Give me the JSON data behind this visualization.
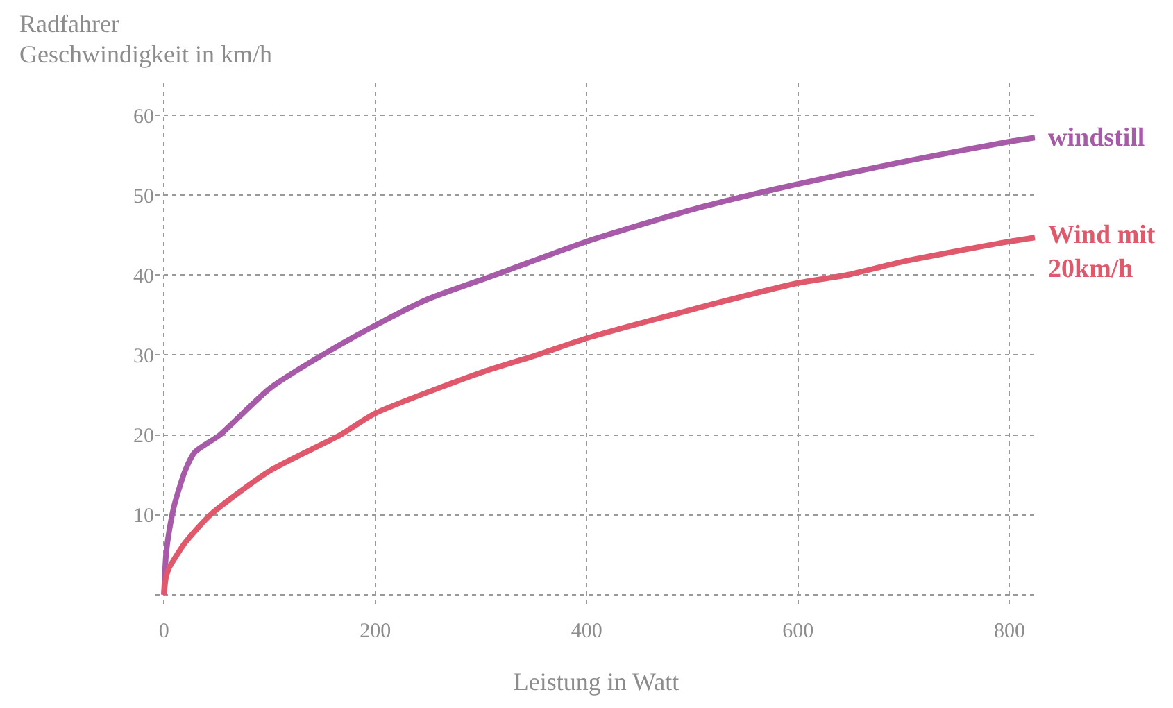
{
  "chart_data": {
    "type": "line",
    "title": "Radfahrer",
    "subtitle": "Geschwindigkeit in km/h",
    "xlabel": "Leistung in Watt",
    "series": [
      {
        "name": "windstill",
        "color": "#a65aa8",
        "x": [
          0,
          2,
          5,
          10,
          20,
          29,
          53,
          100,
          150,
          200,
          250,
          313,
          400,
          500,
          554,
          600,
          700,
          800,
          824
        ],
        "values": [
          0,
          5,
          8,
          11.3,
          15.5,
          17.8,
          20,
          25.8,
          30,
          33.7,
          37,
          40,
          44.2,
          48.2,
          50,
          51.4,
          54.2,
          56.7,
          57.2
        ]
      },
      {
        "name": "Wind mit\n20km/h",
        "color": "#e0586b",
        "x": [
          0,
          2,
          5,
          10,
          20,
          44,
          100,
          167,
          200,
          300,
          353,
          400,
          500,
          600,
          646,
          700,
          800,
          824
        ],
        "values": [
          0,
          2.2,
          3.4,
          4.5,
          6.5,
          10,
          15.5,
          20,
          22.7,
          27.8,
          30,
          32.1,
          35.7,
          39,
          40,
          41.7,
          44.2,
          44.7
        ]
      }
    ],
    "xlim": [
      -8,
      826
    ],
    "ylim": [
      -1.5,
      64
    ],
    "xticks": [
      0,
      200,
      400,
      600,
      800
    ],
    "yticks": [
      {
        "value": 0,
        "label": null
      },
      10,
      20,
      30,
      40,
      50,
      60
    ],
    "grid": true,
    "legend": false,
    "marker": "none",
    "line_style": "solid"
  }
}
